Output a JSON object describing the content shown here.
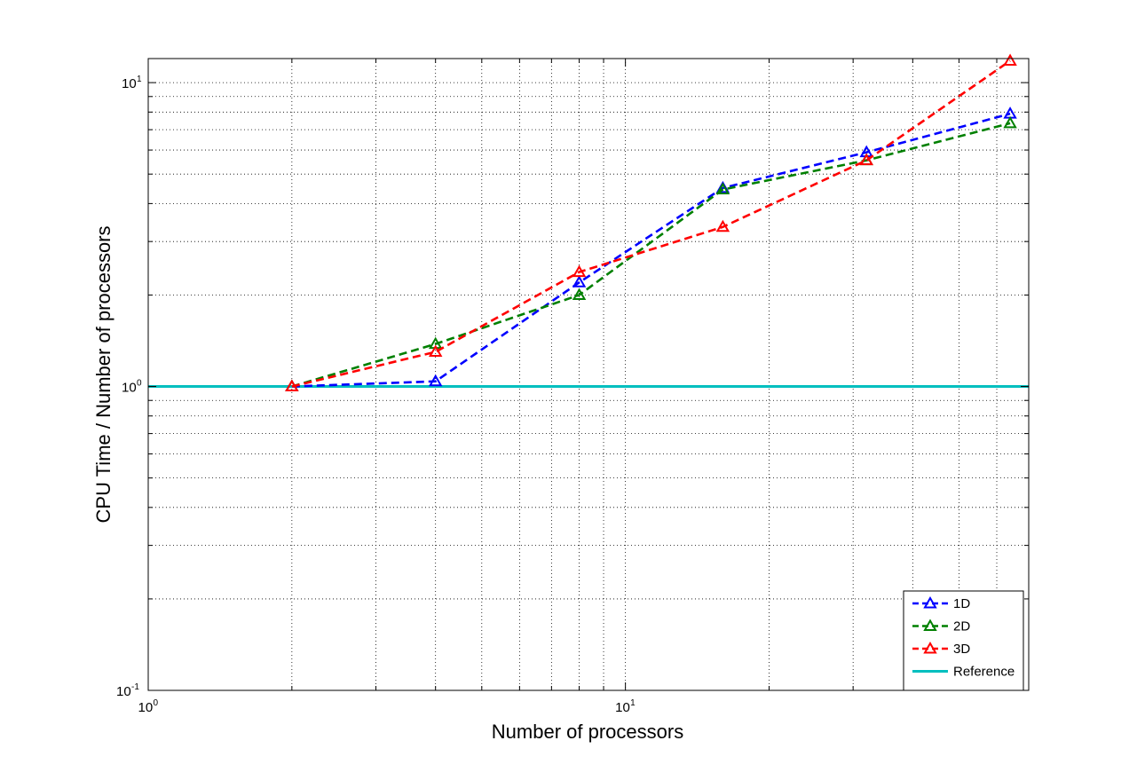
{
  "chart_data": {
    "type": "line",
    "title": "",
    "xlabel": "Number of processors",
    "ylabel": "CPU Time / Number of processors",
    "xscale": "log",
    "yscale": "log",
    "xlim": [
      1,
      70
    ],
    "ylim": [
      0.1,
      12
    ],
    "grid": true,
    "legend_position": "bottom-right",
    "x_tick_labels": [
      {
        "value": 1,
        "base": "10",
        "exp": "0"
      },
      {
        "value": 10,
        "base": "10",
        "exp": "1"
      }
    ],
    "y_tick_labels": [
      {
        "value": 0.1,
        "base": "10",
        "exp": "-1"
      },
      {
        "value": 1,
        "base": "10",
        "exp": "0"
      },
      {
        "value": 10,
        "base": "10",
        "exp": "1"
      }
    ],
    "series": [
      {
        "name": "1D",
        "color": "#0000ff",
        "marker": "triangle",
        "line_style": "dashed",
        "x": [
          2,
          4,
          8,
          16,
          32,
          64
        ],
        "y": [
          1.0,
          1.04,
          2.2,
          4.5,
          5.9,
          7.9
        ]
      },
      {
        "name": "2D",
        "color": "#008000",
        "marker": "triangle",
        "line_style": "dashed",
        "x": [
          2,
          4,
          8,
          16,
          32,
          64
        ],
        "y": [
          1.0,
          1.38,
          2.0,
          4.45,
          5.55,
          7.35
        ]
      },
      {
        "name": "3D",
        "color": "#ff0000",
        "marker": "triangle",
        "line_style": "dashed",
        "x": [
          2,
          4,
          8,
          16,
          32,
          64
        ],
        "y": [
          1.0,
          1.3,
          2.38,
          3.35,
          5.55,
          11.8
        ]
      },
      {
        "name": "Reference",
        "color": "#00bfbf",
        "marker": "none",
        "line_style": "solid",
        "x": [
          1,
          70
        ],
        "y": [
          1.0,
          1.0
        ]
      }
    ]
  }
}
